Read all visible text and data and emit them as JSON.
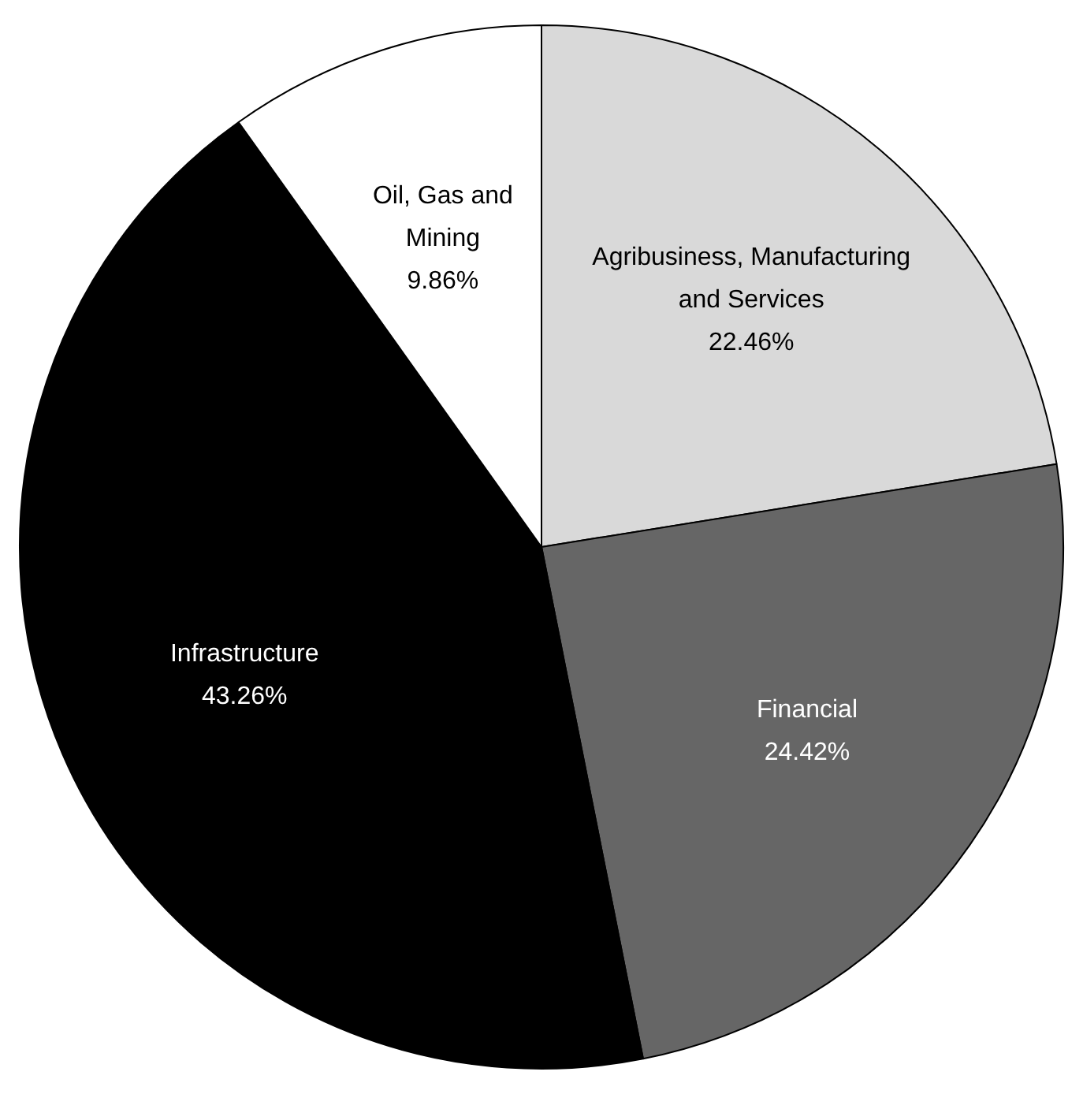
{
  "chart_data": {
    "type": "pie",
    "categories": [
      "Agribusiness, Manufacturing and Services",
      "Financial",
      "Infrastructure",
      "Oil, Gas and Mining"
    ],
    "values": [
      22.46,
      24.42,
      43.26,
      9.86
    ],
    "value_labels": [
      "22.46%",
      "24.42%",
      "43.26%",
      "9.86%"
    ],
    "colors": [
      "#d9d9d9",
      "#666666",
      "#000000",
      "#ffffff"
    ],
    "legend": false
  }
}
